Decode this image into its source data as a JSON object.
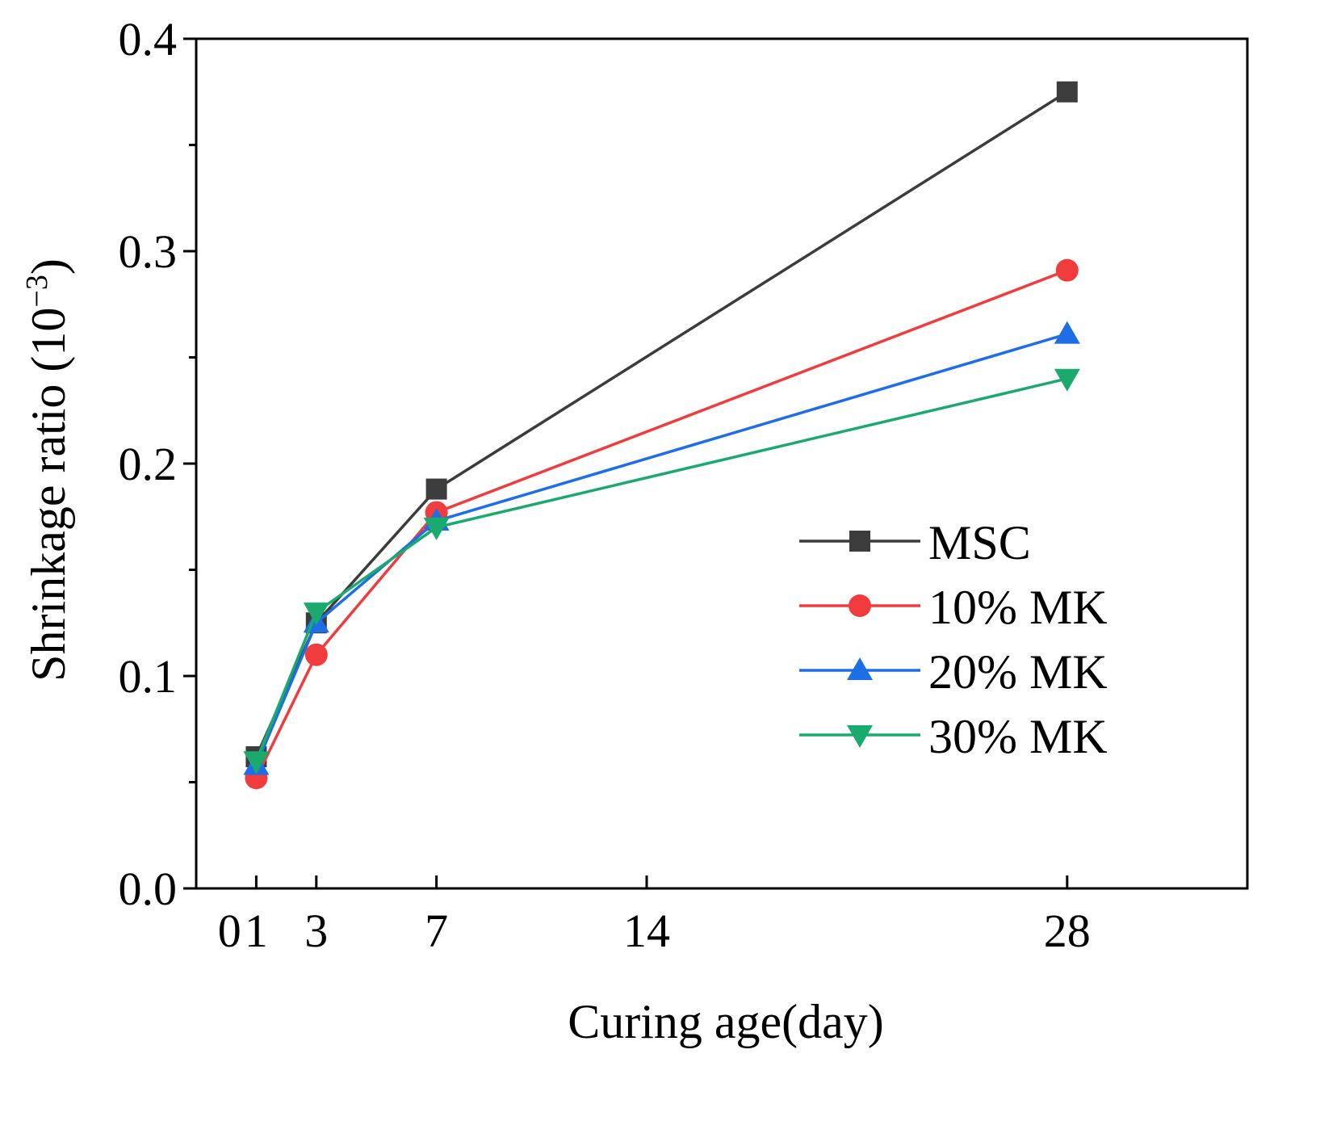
{
  "chart_data": {
    "type": "line",
    "title": "",
    "xlabel": "Curing age(day)",
    "ylabel_main": "Shrinkage ratio (10",
    "ylabel_sup": "−3",
    "ylabel_close": ")",
    "xlim": [
      -1,
      34
    ],
    "ylim": [
      0.0,
      0.4
    ],
    "x_ticks": [
      0,
      1,
      3,
      7,
      14,
      28
    ],
    "x_tick_labels": [
      "0",
      "1",
      "3",
      "7",
      "14",
      "28"
    ],
    "y_ticks": [
      0.0,
      0.1,
      0.2,
      0.3,
      0.4
    ],
    "y_tick_labels": [
      "0.0",
      "0.1",
      "0.2",
      "0.3",
      "0.4"
    ],
    "y_minor_ticks": [
      0.05,
      0.15,
      0.25,
      0.35
    ],
    "x": [
      1,
      3,
      7,
      28
    ],
    "legend_position": "center-right",
    "series": [
      {
        "name": "MSC",
        "color": "#3c3c3c",
        "marker": "square",
        "values": [
          0.062,
          0.125,
          0.188,
          0.375
        ]
      },
      {
        "name": "10% MK",
        "color": "#f03c3c",
        "marker": "circle",
        "values": [
          0.052,
          0.11,
          0.177,
          0.291
        ]
      },
      {
        "name": "20% MK",
        "color": "#1e6ee6",
        "marker": "triangle-up",
        "values": [
          0.058,
          0.125,
          0.173,
          0.261
        ]
      },
      {
        "name": "30% MK",
        "color": "#1aaa6e",
        "marker": "triangle-down",
        "values": [
          0.06,
          0.13,
          0.17,
          0.24
        ]
      }
    ]
  }
}
